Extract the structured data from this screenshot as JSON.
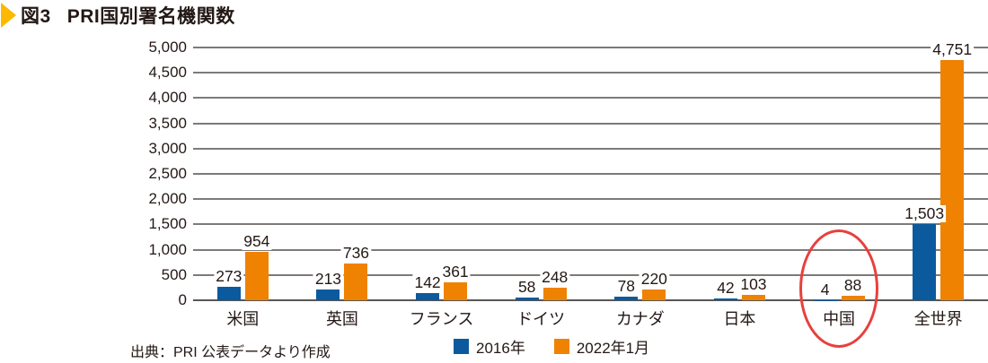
{
  "header": {
    "figure_label": "図3",
    "title": "PRI国別署名機関数",
    "arrow_color": "#fcb900"
  },
  "chart_data": {
    "type": "bar",
    "categories": [
      "米国",
      "英国",
      "フランス",
      "ドイツ",
      "カナダ",
      "日本",
      "中国",
      "全世界"
    ],
    "series": [
      {
        "name": "2016年",
        "color": "#0b5a9e",
        "values": [
          273,
          213,
          142,
          58,
          78,
          42,
          4,
          1503
        ]
      },
      {
        "name": "2022年1月",
        "color": "#ef8200",
        "values": [
          954,
          736,
          361,
          248,
          220,
          103,
          88,
          4751
        ]
      }
    ],
    "ylim": [
      0,
      5000
    ],
    "ytick_step": 500,
    "grid": true,
    "gridline_color": "#7d7a78",
    "legend_position": "bottom",
    "data_labels": true,
    "annotation": {
      "type": "ellipse",
      "category": "中国",
      "color": "#e8403c"
    }
  },
  "footer": {
    "source": "出典：PRI 公表データより作成"
  }
}
